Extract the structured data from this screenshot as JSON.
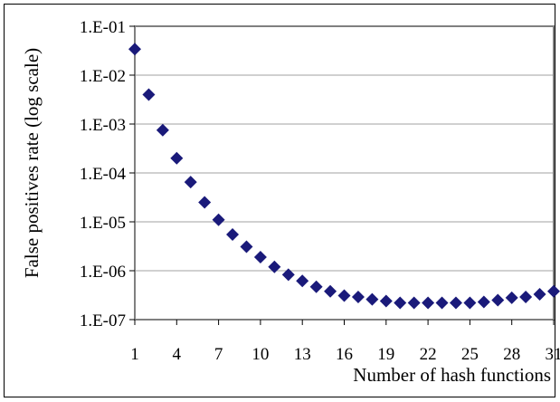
{
  "chart_data": {
    "type": "scatter",
    "title": "",
    "xlabel": "Number of hash functions",
    "ylabel": "False positives  rate (log scale)",
    "xlim": [
      1,
      31
    ],
    "ylim": [
      1e-07,
      0.1
    ],
    "yscale": "log",
    "x_ticks": [
      "1",
      "4",
      "7",
      "10",
      "13",
      "16",
      "19",
      "22",
      "25",
      "28",
      "31"
    ],
    "y_ticks": [
      "1.E-01",
      "1.E-02",
      "1.E-03",
      "1.E-04",
      "1.E-05",
      "1.E-06",
      "1.E-07"
    ],
    "grid": {
      "horizontal": true,
      "vertical": false
    },
    "legend": "none",
    "marker": "diamond",
    "colors": {
      "marker": "#1a1a7a",
      "gridline": "#a0a0a0",
      "plot_border": "#808080"
    },
    "x": [
      1,
      2,
      3,
      4,
      5,
      6,
      7,
      8,
      9,
      10,
      11,
      12,
      13,
      14,
      15,
      16,
      17,
      18,
      19,
      20,
      21,
      22,
      23,
      24,
      25,
      26,
      27,
      28,
      29,
      30,
      31
    ],
    "y": [
      0.034,
      0.004,
      0.00075,
      0.0002,
      6.5e-05,
      2.5e-05,
      1.1e-05,
      5.5e-06,
      3.1e-06,
      1.9e-06,
      1.2e-06,
      8.3e-07,
      6.2e-07,
      4.7e-07,
      3.8e-07,
      3.1e-07,
      2.9e-07,
      2.6e-07,
      2.4e-07,
      2.2e-07,
      2.2e-07,
      2.2e-07,
      2.2e-07,
      2.2e-07,
      2.2e-07,
      2.3e-07,
      2.5e-07,
      2.8e-07,
      2.9e-07,
      3.3e-07,
      3.8e-07
    ]
  }
}
